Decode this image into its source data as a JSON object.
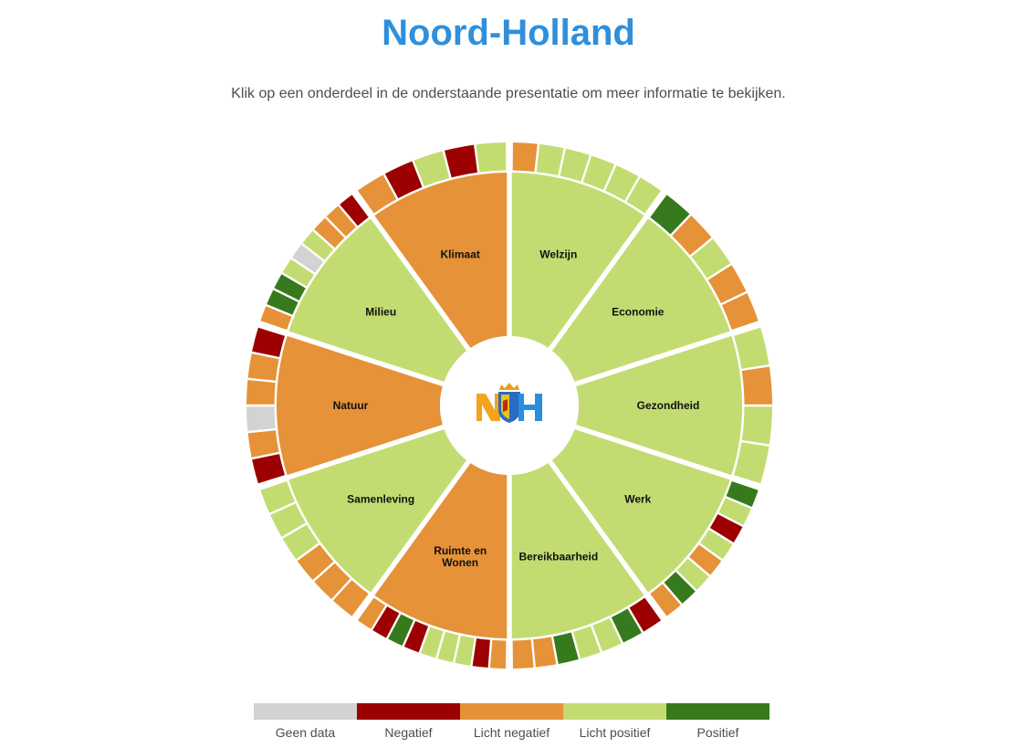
{
  "page": {
    "title": "Noord-Holland",
    "intro": "Klik op een onderdeel in de onderstaande presentatie om meer informatie te bekijken."
  },
  "colors": {
    "geen_data": "#d3d3d3",
    "negatief": "#9c0000",
    "licht_negatief": "#e69238",
    "licht_positief": "#c3dc72",
    "positief": "#367a1d",
    "title": "#2f8fdb"
  },
  "logo": {
    "text": "NH",
    "icon": "noord-holland-crest-logo"
  },
  "wheel": [
    {
      "label": "Welzijn",
      "lines": [
        "Welzijn"
      ],
      "status": "licht_positief",
      "indicators": [
        "licht_negatief",
        "licht_positief",
        "licht_positief",
        "licht_positief",
        "licht_positief",
        "licht_positief"
      ]
    },
    {
      "label": "Economie",
      "lines": [
        "Economie"
      ],
      "status": "licht_positief",
      "indicators": [
        "positief",
        "licht_negatief",
        "licht_positief",
        "licht_negatief",
        "licht_negatief"
      ]
    },
    {
      "label": "Gezondheid",
      "lines": [
        "Gezondheid"
      ],
      "status": "licht_positief",
      "indicators": [
        "licht_positief",
        "licht_negatief",
        "licht_positief",
        "licht_positief"
      ]
    },
    {
      "label": "Werk",
      "lines": [
        "Werk"
      ],
      "status": "licht_positief",
      "indicators": [
        "positief",
        "licht_positief",
        "negatief",
        "licht_positief",
        "licht_negatief",
        "licht_positief",
        "positief",
        "licht_negatief"
      ]
    },
    {
      "label": "Bereikbaarheid",
      "lines": [
        "Bereikbaarheid"
      ],
      "status": "licht_positief",
      "indicators": [
        "negatief",
        "positief",
        "licht_positief",
        "licht_positief",
        "positief",
        "licht_negatief",
        "licht_negatief"
      ]
    },
    {
      "label": "Ruimte en Wonen",
      "lines": [
        "Ruimte en",
        "Wonen"
      ],
      "status": "licht_negatief",
      "indicators": [
        "licht_negatief",
        "negatief",
        "licht_positief",
        "licht_positief",
        "licht_positief",
        "negatief",
        "positief",
        "negatief",
        "licht_negatief"
      ]
    },
    {
      "label": "Samenleving",
      "lines": [
        "Samenleving"
      ],
      "status": "licht_positief",
      "indicators": [
        "licht_negatief",
        "licht_negatief",
        "licht_negatief",
        "licht_positief",
        "licht_positief",
        "licht_positief"
      ]
    },
    {
      "label": "Natuur",
      "lines": [
        "Natuur"
      ],
      "status": "licht_negatief",
      "indicators": [
        "negatief",
        "licht_negatief",
        "geen_data",
        "licht_negatief",
        "licht_negatief",
        "negatief"
      ]
    },
    {
      "label": "Milieu",
      "lines": [
        "Milieu"
      ],
      "status": "licht_positief",
      "indicators": [
        "licht_negatief",
        "positief",
        "positief",
        "licht_positief",
        "geen_data",
        "licht_positief",
        "licht_negatief",
        "licht_negatief",
        "negatief"
      ]
    },
    {
      "label": "Klimaat",
      "lines": [
        "Klimaat"
      ],
      "status": "licht_negatief",
      "indicators": [
        "licht_negatief",
        "negatief",
        "licht_positief",
        "negatief",
        "licht_positief"
      ]
    }
  ],
  "legend": [
    {
      "key": "geen_data",
      "label": "Geen data"
    },
    {
      "key": "negatief",
      "label": "Negatief"
    },
    {
      "key": "licht_negatief",
      "label": "Licht negatief"
    },
    {
      "key": "licht_positief",
      "label": "Licht positief"
    },
    {
      "key": "positief",
      "label": "Positief"
    }
  ]
}
